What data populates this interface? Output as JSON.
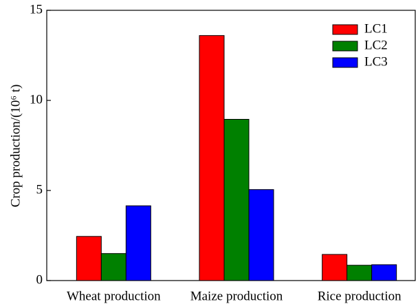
{
  "chart_data": {
    "type": "bar",
    "y_label": "Crop production/(10⁶ t)",
    "categories": [
      "Wheat production",
      "Maize production",
      "Rice production"
    ],
    "series": [
      {
        "name": "LC1",
        "color": "#ff0000",
        "values": [
          2.45,
          13.6,
          1.45
        ]
      },
      {
        "name": "LC2",
        "color": "#008000",
        "values": [
          1.5,
          8.95,
          0.85
        ]
      },
      {
        "name": "LC3",
        "color": "#0000ff",
        "values": [
          4.15,
          5.05,
          0.88
        ]
      }
    ],
    "ylim": [
      0,
      15
    ],
    "yticks": [
      0,
      5,
      10,
      15
    ],
    "legend": "upper right"
  }
}
